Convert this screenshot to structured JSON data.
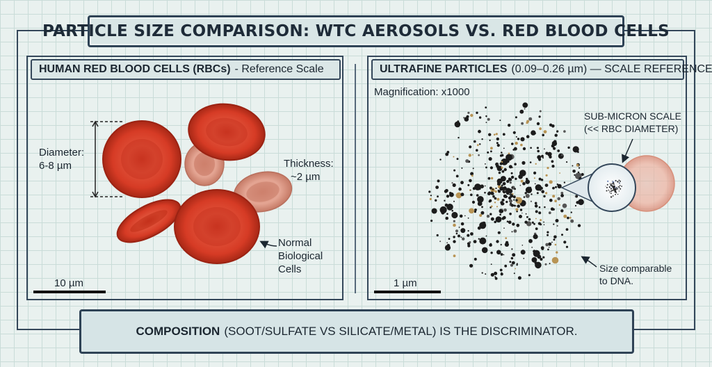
{
  "title": "PARTICLE SIZE COMPARISON: WTC AEROSOLS VS. RED BLOOD CELLS",
  "left_panel": {
    "header_bold": "HUMAN RED BLOOD CELLS (RBCs)",
    "header_rest": "- Reference Scale",
    "diameter_line1": "Diameter:",
    "diameter_line2": "6-8 µm",
    "thickness_line1": "Thickness:",
    "thickness_line2": "~2 µm",
    "normal_line1": "Normal",
    "normal_line2": "Biological",
    "normal_line3": "Cells",
    "scale_label": "10 µm"
  },
  "right_panel": {
    "header_bold": "ULTRAFINE PARTICLES",
    "header_rest": "(0.09–0.26 µm) — SCALE REFERENCE",
    "magnification": "Magnification: x1000",
    "submicron_line1": "SUB-MICRON SCALE",
    "submicron_line2": "(<< RBC DIAMETER)",
    "dna_line1": "Size comparable",
    "dna_line2": "to DNA.",
    "scale_label": "1 µm"
  },
  "footer": {
    "bold": "COMPOSITION",
    "rest": "(SOOT/SULFATE VS SILICATE/METAL) IS THE DISCRIMINATOR."
  },
  "colors": {
    "rbc_red": "#d9402c",
    "rbc_pale": "#dc8e7a",
    "frame": "#34475a",
    "soot": "#1c1c1c",
    "silicate": "#b89455"
  }
}
